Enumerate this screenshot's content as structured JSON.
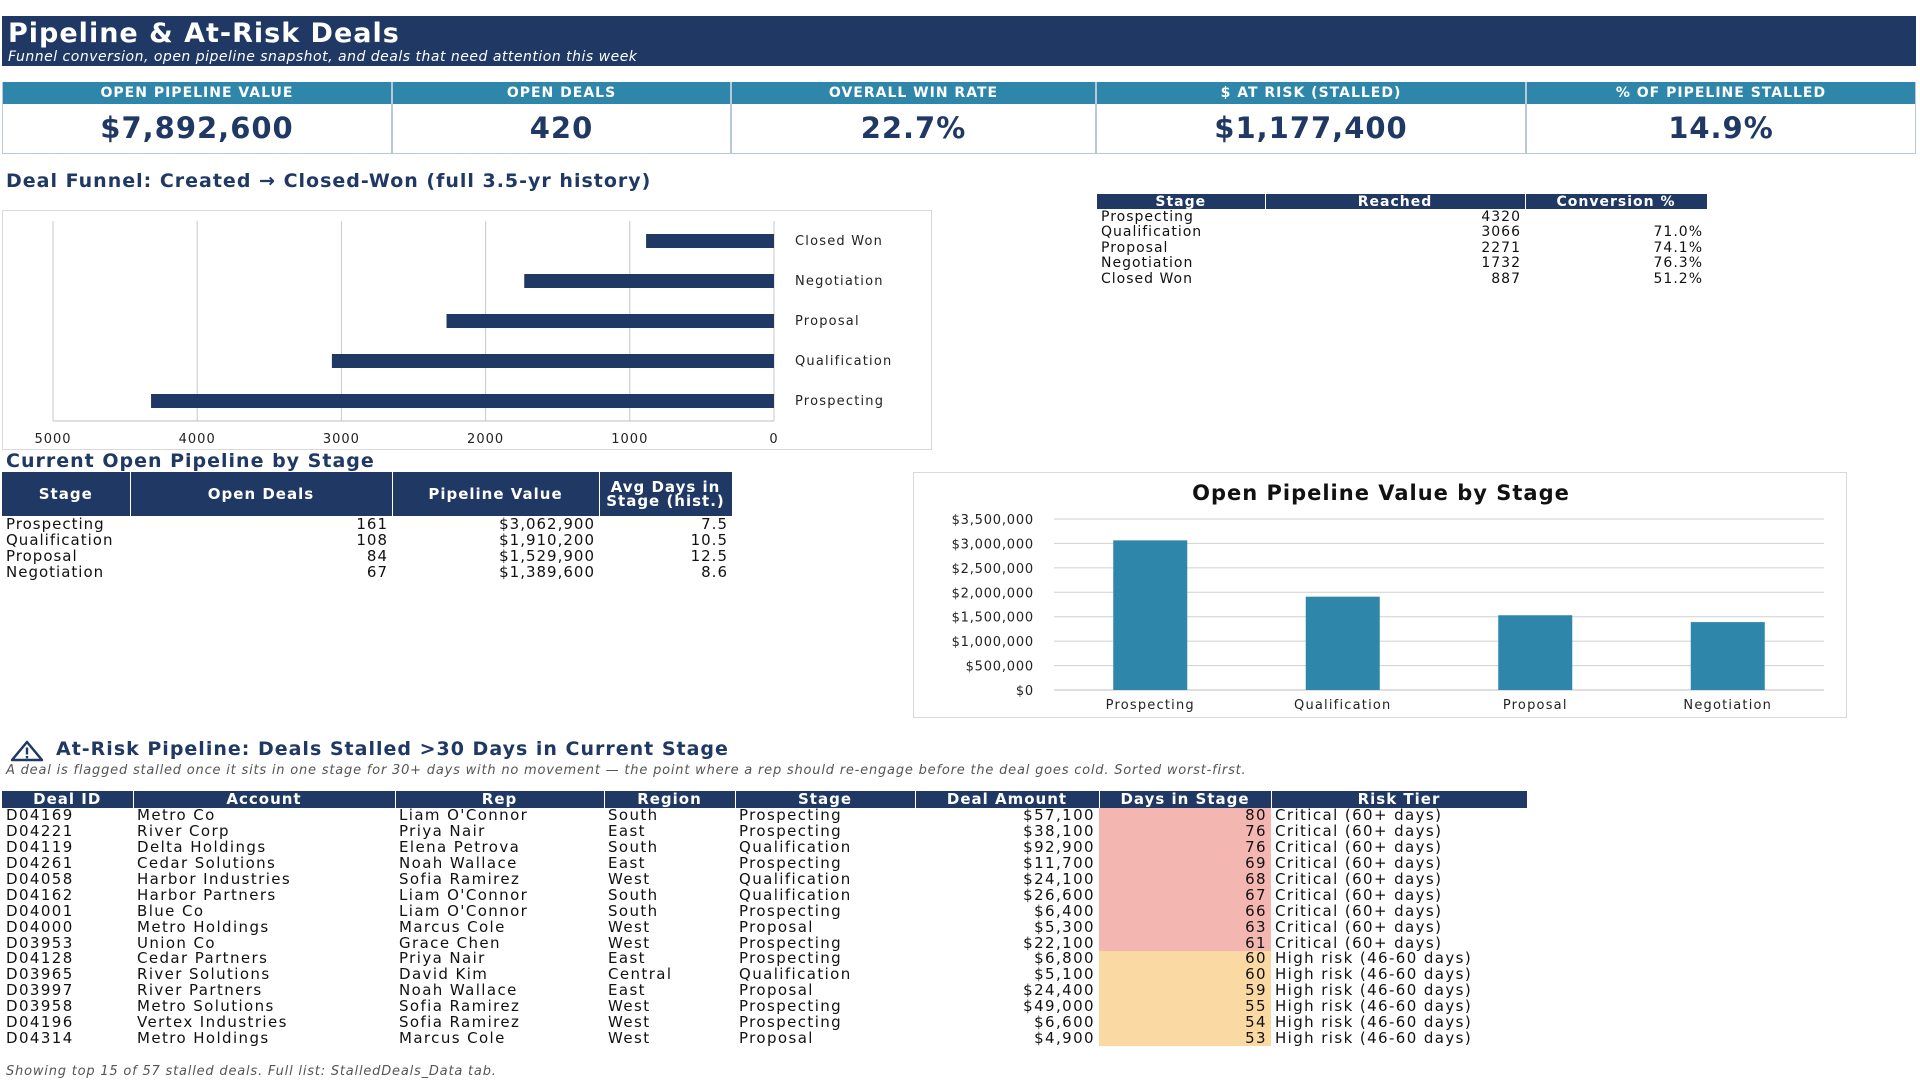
{
  "header": {
    "title": "Pipeline & At-Risk Deals",
    "subtitle": "Funnel conversion, open pipeline snapshot, and deals that need attention this week"
  },
  "kpis": [
    {
      "label": "OPEN PIPELINE VALUE",
      "value": "$7,892,600"
    },
    {
      "label": "OPEN DEALS",
      "value": "420"
    },
    {
      "label": "OVERALL WIN RATE",
      "value": "22.7%"
    },
    {
      "label": "$ AT RISK (STALLED)",
      "value": "$1,177,400"
    },
    {
      "label": "% OF PIPELINE STALLED",
      "value": "14.9%"
    }
  ],
  "funnel": {
    "title": "Deal Funnel: Created → Closed-Won (full 3.5-yr history)",
    "table_headers": [
      "Stage",
      "Reached",
      "Conversion %"
    ],
    "rows": [
      {
        "stage": "Prospecting",
        "reached": "4320",
        "conversion": ""
      },
      {
        "stage": "Qualification",
        "reached": "3066",
        "conversion": "71.0%"
      },
      {
        "stage": "Proposal",
        "reached": "2271",
        "conversion": "74.1%"
      },
      {
        "stage": "Negotiation",
        "reached": "1732",
        "conversion": "76.3%"
      },
      {
        "stage": "Closed Won",
        "reached": "887",
        "conversion": "51.2%"
      }
    ]
  },
  "open_pipeline": {
    "title": "Current Open Pipeline by Stage",
    "headers": [
      "Stage",
      "Open Deals",
      "Pipeline Value",
      "Avg Days in Stage (hist.)"
    ],
    "rows": [
      {
        "stage": "Prospecting",
        "deals": "161",
        "value": "$3,062,900",
        "avg_days": "7.5"
      },
      {
        "stage": "Qualification",
        "deals": "108",
        "value": "$1,910,200",
        "avg_days": "10.5"
      },
      {
        "stage": "Proposal",
        "deals": "84",
        "value": "$1,529,900",
        "avg_days": "12.5"
      },
      {
        "stage": "Negotiation",
        "deals": "67",
        "value": "$1,389,600",
        "avg_days": "8.6"
      }
    ]
  },
  "at_risk": {
    "title": "At-Risk Pipeline: Deals Stalled >30 Days in Current Stage",
    "note": "A deal is flagged stalled once it sits in one stage for 30+ days with no movement — the point where a rep should re-engage before the deal goes cold. Sorted worst-first.",
    "headers": [
      "Deal ID",
      "Account",
      "Rep",
      "Region",
      "Stage",
      "Deal Amount",
      "Days in Stage",
      "Risk Tier"
    ],
    "rows": [
      {
        "id": "D04169",
        "account": "Metro Co",
        "rep": "Liam O'Connor",
        "region": "South",
        "stage": "Prospecting",
        "amount": "$57,100",
        "days": "80",
        "tier": "Critical (60+ days)"
      },
      {
        "id": "D04221",
        "account": "River Corp",
        "rep": "Priya Nair",
        "region": "East",
        "stage": "Prospecting",
        "amount": "$38,100",
        "days": "76",
        "tier": "Critical (60+ days)"
      },
      {
        "id": "D04119",
        "account": "Delta Holdings",
        "rep": "Elena Petrova",
        "region": "South",
        "stage": "Qualification",
        "amount": "$92,900",
        "days": "76",
        "tier": "Critical (60+ days)"
      },
      {
        "id": "D04261",
        "account": "Cedar Solutions",
        "rep": "Noah Wallace",
        "region": "East",
        "stage": "Prospecting",
        "amount": "$11,700",
        "days": "69",
        "tier": "Critical (60+ days)"
      },
      {
        "id": "D04058",
        "account": "Harbor Industries",
        "rep": "Sofia Ramirez",
        "region": "West",
        "stage": "Qualification",
        "amount": "$24,100",
        "days": "68",
        "tier": "Critical (60+ days)"
      },
      {
        "id": "D04162",
        "account": "Harbor Partners",
        "rep": "Liam O'Connor",
        "region": "South",
        "stage": "Qualification",
        "amount": "$26,600",
        "days": "67",
        "tier": "Critical (60+ days)"
      },
      {
        "id": "D04001",
        "account": "Blue Co",
        "rep": "Liam O'Connor",
        "region": "South",
        "stage": "Prospecting",
        "amount": "$6,400",
        "days": "66",
        "tier": "Critical (60+ days)"
      },
      {
        "id": "D04000",
        "account": "Metro Holdings",
        "rep": "Marcus Cole",
        "region": "West",
        "stage": "Proposal",
        "amount": "$5,300",
        "days": "63",
        "tier": "Critical (60+ days)"
      },
      {
        "id": "D03953",
        "account": "Union Co",
        "rep": "Grace Chen",
        "region": "West",
        "stage": "Prospecting",
        "amount": "$22,100",
        "days": "61",
        "tier": "Critical (60+ days)"
      },
      {
        "id": "D04128",
        "account": "Cedar Partners",
        "rep": "Priya Nair",
        "region": "East",
        "stage": "Prospecting",
        "amount": "$6,800",
        "days": "60",
        "tier": "High risk (46-60 days)"
      },
      {
        "id": "D03965",
        "account": "River Solutions",
        "rep": "David Kim",
        "region": "Central",
        "stage": "Qualification",
        "amount": "$5,100",
        "days": "60",
        "tier": "High risk (46-60 days)"
      },
      {
        "id": "D03997",
        "account": "River Partners",
        "rep": "Noah Wallace",
        "region": "East",
        "stage": "Proposal",
        "amount": "$24,400",
        "days": "59",
        "tier": "High risk (46-60 days)"
      },
      {
        "id": "D03958",
        "account": "Metro Solutions",
        "rep": "Sofia Ramirez",
        "region": "West",
        "stage": "Prospecting",
        "amount": "$49,000",
        "days": "55",
        "tier": "High risk (46-60 days)"
      },
      {
        "id": "D04196",
        "account": "Vertex Industries",
        "rep": "Sofia Ramirez",
        "region": "West",
        "stage": "Prospecting",
        "amount": "$6,600",
        "days": "54",
        "tier": "High risk (46-60 days)"
      },
      {
        "id": "D04314",
        "account": "Metro Holdings",
        "rep": "Marcus Cole",
        "region": "West",
        "stage": "Proposal",
        "amount": "$4,900",
        "days": "53",
        "tier": "High risk (46-60 days)"
      }
    ],
    "footer": "Showing top 15 of 57 stalled deals. Full list: StalledDeals_Data tab."
  },
  "colors": {
    "navy": "#1f3864",
    "teal": "#2e86ab",
    "critical": "#f4b6b1",
    "high": "#fbd9a2"
  },
  "chart_data": [
    {
      "type": "bar",
      "orientation": "horizontal",
      "x_axis": "reversed",
      "categories": [
        "Prospecting",
        "Qualification",
        "Proposal",
        "Negotiation",
        "Closed Won"
      ],
      "values": [
        4320,
        3066,
        2271,
        1732,
        887
      ],
      "xlim": [
        0,
        5000
      ],
      "xticks": [
        "5000",
        "4000",
        "3000",
        "2000",
        "1000",
        "0"
      ],
      "grid": true,
      "color": "#1f3864"
    },
    {
      "type": "bar",
      "title": "Open Pipeline Value by Stage",
      "categories": [
        "Prospecting",
        "Qualification",
        "Proposal",
        "Negotiation"
      ],
      "values": [
        3062900,
        1910200,
        1529900,
        1389600
      ],
      "ylim": [
        0,
        3500000
      ],
      "yticks": [
        "$0",
        "$500,000",
        "$1,000,000",
        "$1,500,000",
        "$2,000,000",
        "$2,500,000",
        "$3,000,000",
        "$3,500,000"
      ],
      "grid": true,
      "color": "#2e86ab"
    }
  ]
}
